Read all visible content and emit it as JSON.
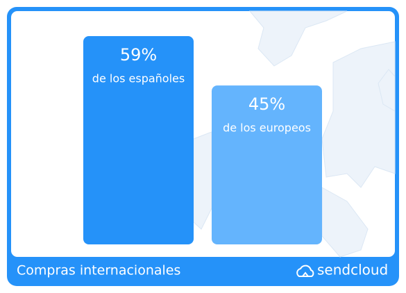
{
  "chart_data": {
    "type": "bar",
    "categories": [
      "de los españoles",
      "de los europeos"
    ],
    "values": [
      59,
      45
    ],
    "value_labels": [
      "59%",
      "45%"
    ],
    "colors": [
      "#2592f9",
      "#64b4fd"
    ]
  },
  "footer": {
    "title": "Compras internacionales",
    "brand": "sendcloud"
  }
}
